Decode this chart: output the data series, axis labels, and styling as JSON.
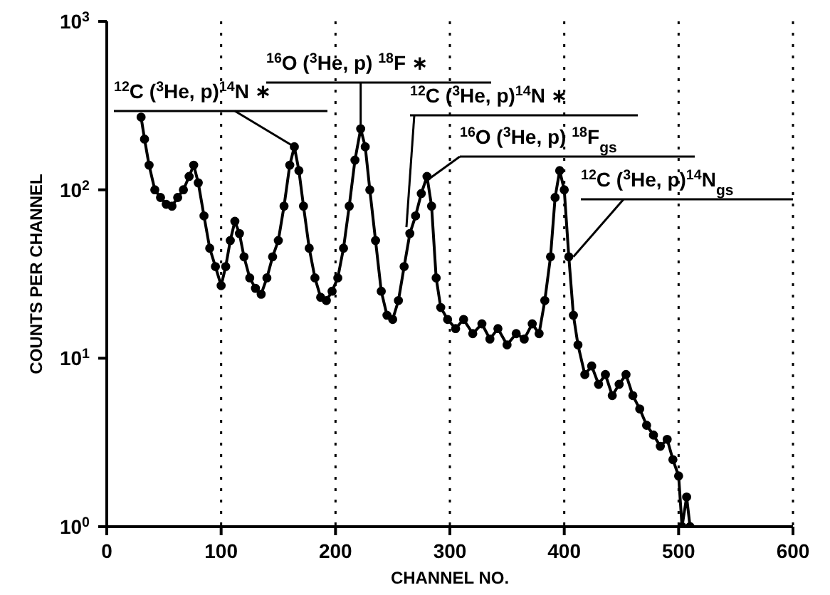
{
  "chart_data": {
    "type": "line",
    "xlabel": "CHANNEL NO.",
    "ylabel": "COUNTS PER CHANNEL",
    "log": "y",
    "grid": "x",
    "marker": "circle",
    "line_style": "solid",
    "xlim": [
      0,
      600
    ],
    "xticks": [
      0,
      100,
      200,
      300,
      400,
      500,
      600
    ],
    "ylim": [
      1,
      1000
    ],
    "yticks": [
      {
        "value": 1,
        "label": "10$^{0}$"
      },
      {
        "value": 10,
        "label": "10$^{1}$"
      },
      {
        "value": 100,
        "label": "10$^{2}$"
      },
      {
        "value": 1000,
        "label": "10$^{3}$"
      }
    ],
    "x": [
      30,
      33,
      37,
      42,
      47,
      52,
      57,
      62,
      67,
      72,
      76,
      80,
      85,
      90,
      95,
      100,
      104,
      108,
      112,
      116,
      120,
      125,
      130,
      135,
      140,
      145,
      150,
      155,
      160,
      164,
      168,
      172,
      177,
      182,
      187,
      192,
      197,
      202,
      207,
      212,
      217,
      222,
      226,
      230,
      235,
      240,
      245,
      250,
      255,
      260,
      265,
      270,
      275,
      280,
      284,
      288,
      292,
      298,
      305,
      312,
      320,
      328,
      335,
      342,
      350,
      358,
      365,
      372,
      378,
      383,
      388,
      392,
      396,
      400,
      404,
      408,
      412,
      418,
      424,
      430,
      436,
      442,
      448,
      454,
      460,
      466,
      472,
      478,
      484,
      490,
      495,
      500,
      503,
      507,
      510
    ],
    "series": [
      {
        "color": "#000000",
        "values": [
          270,
          200,
          140,
          100,
          90,
          82,
          80,
          90,
          100,
          120,
          140,
          110,
          70,
          45,
          35,
          27,
          35,
          50,
          65,
          55,
          40,
          30,
          26,
          24,
          30,
          40,
          50,
          80,
          140,
          180,
          130,
          80,
          45,
          30,
          23,
          22,
          25,
          30,
          45,
          80,
          150,
          230,
          180,
          100,
          50,
          25,
          18,
          17,
          22,
          35,
          55,
          70,
          95,
          120,
          80,
          30,
          20,
          17,
          15,
          17,
          14,
          16,
          13,
          15,
          12,
          14,
          13,
          16,
          14,
          22,
          40,
          90,
          130,
          100,
          40,
          18,
          12,
          8,
          9,
          7,
          8,
          6,
          7,
          8,
          6,
          5,
          4,
          3.5,
          3,
          3.3,
          2.5,
          2,
          1,
          1.5,
          1
        ]
      }
    ],
    "annotations": [
      {
        "text": "$^{12}$C ($^{3}$He, p)$^{14}$N ∗",
        "x": 164,
        "y": 180
      },
      {
        "text": "$^{16}$O ($^{3}$He, p) $^{18}$F ∗",
        "x": 222,
        "y": 230
      },
      {
        "text": "$^{12}$C ($^{3}$He, p)$^{14}$N ∗",
        "x": 262,
        "y": 60
      },
      {
        "text": "$^{16}$O ($^{3}$He, p) $^{18}$F$_{gs}$",
        "x": 281,
        "y": 115
      },
      {
        "text": "$^{12}$C ($^{3}$He, p)$^{14}$N$_{gs}$",
        "x": 408,
        "y": 40
      }
    ]
  }
}
